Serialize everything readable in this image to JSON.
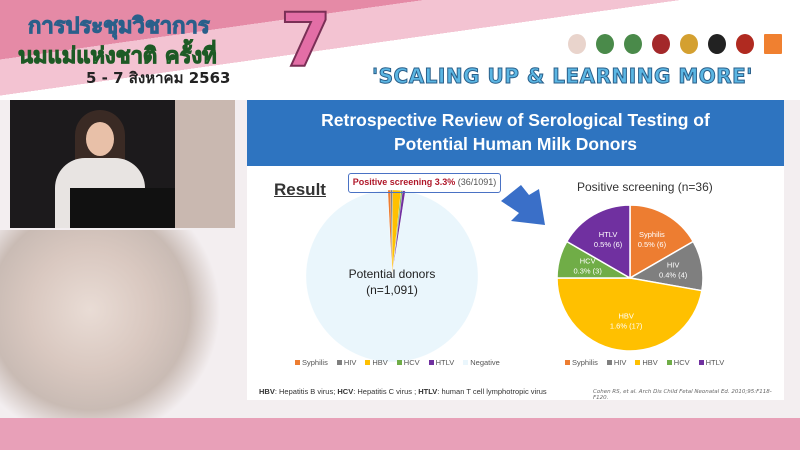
{
  "banner": {
    "line1": "การประชุมวิชาการ",
    "line2": "นมแม่แห่งชาติ ครั้งที่",
    "dates": "5 - 7 สิงหาคม 2563",
    "number": "7",
    "slogan": "'SCALING UP & LEARNING MORE'"
  },
  "slide": {
    "title_line1": "Retrospective Review of Serological Testing of",
    "title_line2": "Potential Human Milk Donors",
    "result_heading": "Result",
    "callout_bold": "Positive screening 3.3%",
    "callout_count": "(36/1091)",
    "footer_html_parts": [
      {
        "b": "HBV",
        "t": ": Hepatitis B virus; "
      },
      {
        "b": "HCV",
        "t": ": Hepatitis C virus ; "
      },
      {
        "b": "HTLV",
        "t": ": human T cell lymphotropic virus"
      }
    ],
    "citation": "Cohen RS, et al. Arch Dis Child Fetal Neonatal Ed. 2010;95:F118-F120."
  },
  "chart_data": [
    {
      "type": "pie",
      "center_label_line1": "Potential donors",
      "center_label_line2": "(n=1,091)",
      "categories": [
        "Syphilis",
        "HIV",
        "HBV",
        "HCV",
        "HTLV",
        "Negative"
      ],
      "values": [
        6,
        4,
        17,
        3,
        6,
        1055
      ],
      "colors": [
        "#ed7d31",
        "#7f7f7f",
        "#ffc000",
        "#70ad47",
        "#7030a0",
        "#eaf6fc"
      ],
      "legend": "bottom"
    },
    {
      "type": "pie",
      "title": "Positive screening (n=36)",
      "categories": [
        "Syphilis",
        "HIV",
        "HBV",
        "HCV",
        "HTLV"
      ],
      "values": [
        6,
        4,
        17,
        3,
        6
      ],
      "data_labels": [
        "0.5% (6)",
        "0.4% (4)",
        "1.6% (17)",
        "0.3% (3)",
        "0.5% (6)"
      ],
      "colors": [
        "#ed7d31",
        "#7f7f7f",
        "#ffc000",
        "#70ad47",
        "#7030a0"
      ],
      "legend": "bottom"
    }
  ]
}
